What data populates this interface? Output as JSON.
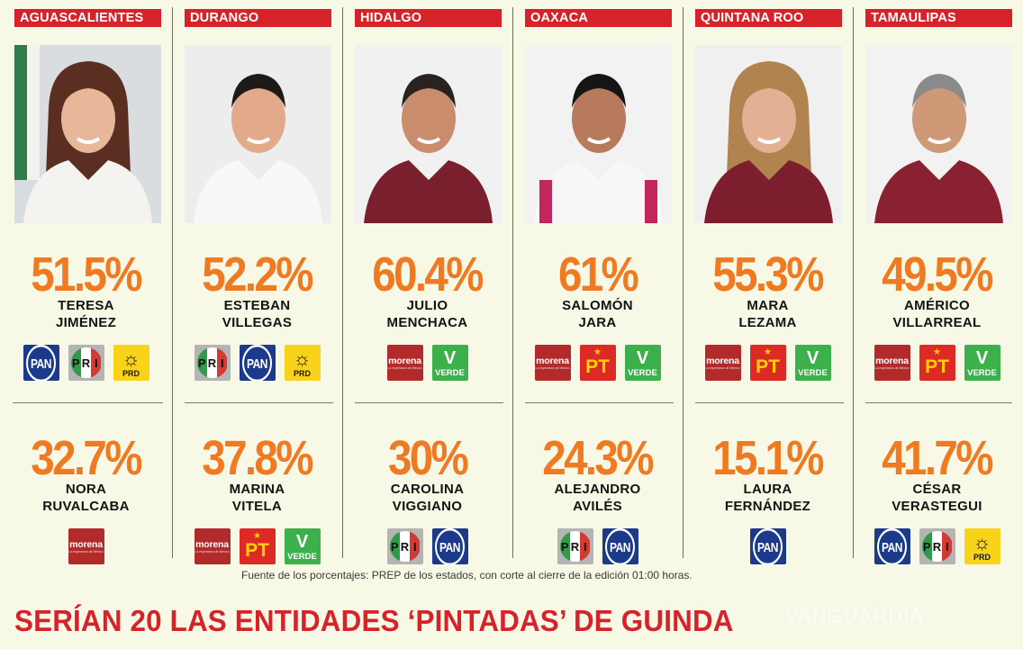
{
  "columns": [
    {
      "state": "AGUASCALIENTES",
      "photo_desc": "woman-long-brown-hair-white-top",
      "winner": {
        "percent": "51.5%",
        "first": "TERESA",
        "last": "JIMÉNEZ",
        "parties": [
          "PAN",
          "PRI",
          "PRD"
        ]
      },
      "runner_up": {
        "percent": "32.7%",
        "first": "NORA",
        "last": "RUVALCABA",
        "parties": [
          "MORENA"
        ]
      }
    },
    {
      "state": "DURANGO",
      "photo_desc": "man-short-dark-hair-white-shirt",
      "winner": {
        "percent": "52.2%",
        "first": "ESTEBAN",
        "last": "VILLEGAS",
        "parties": [
          "PRI",
          "PAN",
          "PRD"
        ]
      },
      "runner_up": {
        "percent": "37.8%",
        "first": "MARINA",
        "last": "VITELA",
        "parties": [
          "MORENA",
          "PT",
          "VERDE"
        ]
      }
    },
    {
      "state": "HIDALGO",
      "photo_desc": "man-maroon-morena-jacket",
      "winner": {
        "percent": "60.4%",
        "first": "JULIO",
        "last": "MENCHACA",
        "parties": [
          "MORENA",
          "VERDE"
        ]
      },
      "runner_up": {
        "percent": "30%",
        "first": "CAROLINA",
        "last": "VIGGIANO",
        "parties": [
          "PRI",
          "PAN"
        ]
      }
    },
    {
      "state": "OAXACA",
      "photo_desc": "man-white-shirt-embroidered-sash",
      "winner": {
        "percent": "61%",
        "first": "SALOMÓN",
        "last": "JARA",
        "parties": [
          "MORENA",
          "PT",
          "VERDE"
        ]
      },
      "runner_up": {
        "percent": "24.3%",
        "first": "ALEJANDRO",
        "last": "AVILÉS",
        "parties": [
          "PRI",
          "PAN"
        ]
      }
    },
    {
      "state": "QUINTANA ROO",
      "photo_desc": "woman-blond-hair-maroon-jacket",
      "winner": {
        "percent": "55.3%",
        "first": "MARA",
        "last": "LEZAMA",
        "parties": [
          "MORENA",
          "PT",
          "VERDE"
        ]
      },
      "runner_up": {
        "percent": "15.1%",
        "first": "LAURA",
        "last": "FERNÁNDEZ",
        "parties": [
          "PAN"
        ]
      }
    },
    {
      "state": "TAMAULIPAS",
      "photo_desc": "man-gray-hair-maroon-shirt",
      "winner": {
        "percent": "49.5%",
        "first": "AMÉRICO",
        "last": "VILLARREAL",
        "parties": [
          "MORENA",
          "PT",
          "VERDE"
        ]
      },
      "runner_up": {
        "percent": "41.7%",
        "first": "CÉSAR",
        "last": "VERASTEGUI",
        "parties": [
          "PAN",
          "PRI",
          "PRD"
        ]
      }
    }
  ],
  "party_logos": {
    "PAN": {
      "text": "PAN",
      "color": "#1b3a8c"
    },
    "PRI": {
      "text": "PRI",
      "colors": [
        "#2f9a48",
        "#ffffff",
        "#d33a33"
      ]
    },
    "PRD": {
      "text": "PRD",
      "color": "#f9d21a",
      "glyph": "☼"
    },
    "MORENA": {
      "text": "morena",
      "subtext": "La esperanza de México",
      "color": "#b22a2a"
    },
    "PT": {
      "text": "PT",
      "color": "#de2a24",
      "glyph": "★"
    },
    "VERDE": {
      "text": "VERDE",
      "color": "#3cb04a",
      "glyph": "V"
    }
  },
  "footer": {
    "source": "Fuente de los porcentajes: PREP de los estados, con corte al cierre de la edición 01:00 horas.",
    "headline": "SERÍAN 20 LAS ENTIDADES ‘PINTADAS’ DE GUINDA",
    "watermark": "VANGUARDIA"
  },
  "colors": {
    "background": "#f8f8e6",
    "state_label": "#d7222a",
    "percent": "#ef7a22",
    "headline": "#d7222a"
  }
}
